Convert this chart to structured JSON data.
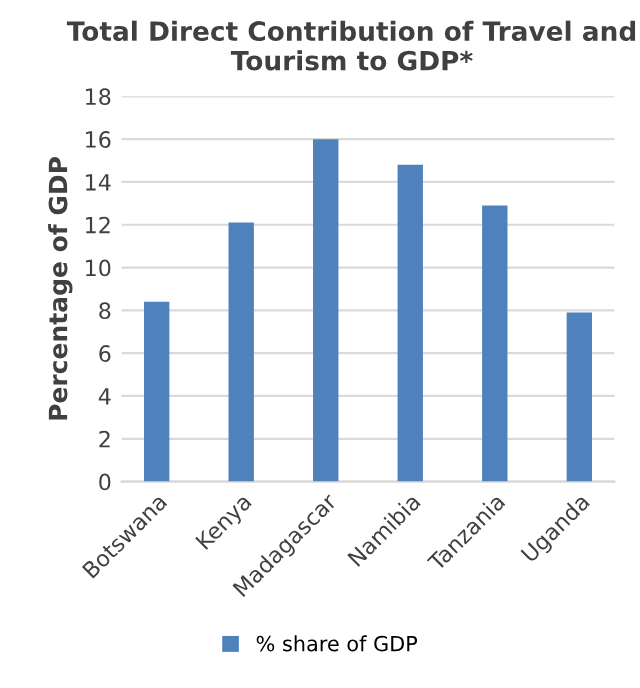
{
  "chart_data": {
    "type": "bar",
    "title": "Total Direct Contribution of Travel and Tourism to GDP*",
    "ylabel": "Percentage of GDP",
    "categories": [
      "Botswana",
      "Kenya",
      "Madagascar",
      "Namibia",
      "Tanzania",
      "Uganda"
    ],
    "series": [
      {
        "name": "% share of GDP",
        "color": "#4f81bd",
        "values": [
          8.4,
          12.1,
          16.0,
          14.8,
          12.9,
          7.9
        ]
      }
    ],
    "ylim": [
      0,
      18
    ],
    "yticks": [
      0,
      2,
      4,
      6,
      8,
      10,
      12,
      14,
      16,
      18
    ],
    "grid": "y",
    "legend": "bottom"
  }
}
